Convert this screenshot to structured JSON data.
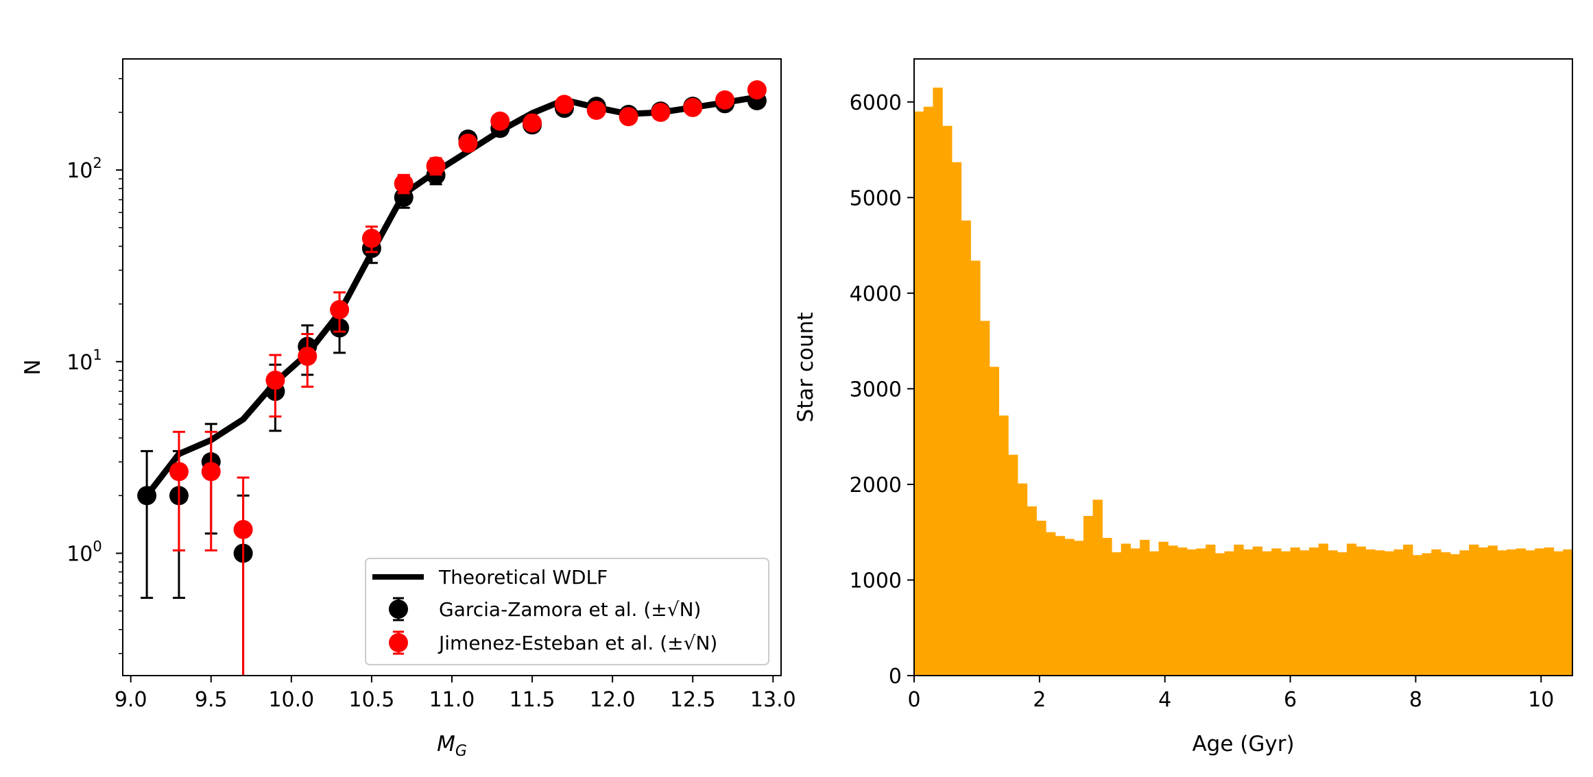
{
  "chart_data": [
    {
      "type": "scatter",
      "panel": "left",
      "xlabel": "M",
      "xlabel_subscript": "G",
      "ylabel": "N",
      "yscale": "log",
      "xlim": [
        8.95,
        13.05
      ],
      "ylim": [
        0.23,
        380
      ],
      "xticks": [
        {
          "value": 9.0,
          "label": "9.0"
        },
        {
          "value": 9.5,
          "label": "9.5"
        },
        {
          "value": 10.0,
          "label": "10.0"
        },
        {
          "value": 10.5,
          "label": "10.5"
        },
        {
          "value": 11.0,
          "label": "11.0"
        },
        {
          "value": 11.5,
          "label": "11.5"
        },
        {
          "value": 12.0,
          "label": "12.0"
        },
        {
          "value": 12.5,
          "label": "12.5"
        },
        {
          "value": 13.0,
          "label": "13.0"
        }
      ],
      "yticks": [
        {
          "value": 1,
          "base": "10",
          "exp": "0"
        },
        {
          "value": 10,
          "base": "10",
          "exp": "1"
        },
        {
          "value": 100,
          "base": "10",
          "exp": "2"
        }
      ],
      "theory": {
        "name": "Theoretical WDLF",
        "color": "#000000",
        "x": [
          9.1,
          9.3,
          9.5,
          9.7,
          9.9,
          10.1,
          10.3,
          10.5,
          10.7,
          10.9,
          11.1,
          11.3,
          11.5,
          11.7,
          11.9,
          12.1,
          12.3,
          12.5,
          12.7,
          12.9
        ],
        "y": [
          2.0,
          3.3,
          3.9,
          5.0,
          7.8,
          11.0,
          18.0,
          37.0,
          75.0,
          98.0,
          125.0,
          160.0,
          198.0,
          232.0,
          212.0,
          196.0,
          200.0,
          212.0,
          225.0,
          240.0
        ]
      },
      "series": [
        {
          "name": "Garcia-Zamora et al. (±√N)",
          "color": "#000000",
          "x": [
            9.1,
            9.3,
            9.5,
            9.7,
            9.9,
            10.1,
            10.3,
            10.5,
            10.7,
            10.9,
            11.1,
            11.3,
            11.5,
            11.7,
            11.9,
            12.1,
            12.3,
            12.5,
            12.7,
            12.9
          ],
          "y": [
            2,
            2,
            3,
            1,
            7,
            12,
            15,
            39,
            72,
            94,
            145,
            165,
            172,
            210,
            215,
            195,
            203,
            215,
            222,
            230
          ]
        },
        {
          "name": "Jimenez-Esteban et al. (±√N)",
          "color": "#ff0000",
          "x": [
            9.3,
            9.5,
            9.7,
            9.9,
            10.1,
            10.3,
            10.5,
            10.7,
            10.9,
            11.1,
            11.3,
            11.5,
            11.7,
            11.9,
            12.1,
            12.3,
            12.5,
            12.7,
            12.9
          ],
          "y": [
            2.67,
            2.67,
            1.33,
            8.0,
            10.67,
            18.67,
            44.0,
            85.0,
            105.0,
            138.0,
            180.0,
            176.0,
            220.0,
            205.0,
            190.0,
            200.0,
            212.0,
            232.0,
            262.0
          ]
        }
      ],
      "legend_position": "lower right"
    },
    {
      "type": "bar",
      "panel": "right",
      "histogram": true,
      "xlabel": "Age (Gyr)",
      "ylabel": "Star count",
      "color": "#ffa500",
      "xlim": [
        0,
        10.5
      ],
      "ylim": [
        0,
        6450
      ],
      "bin_width": 0.15,
      "xticks": [
        {
          "value": 0,
          "label": "0"
        },
        {
          "value": 2,
          "label": "2"
        },
        {
          "value": 4,
          "label": "4"
        },
        {
          "value": 6,
          "label": "6"
        },
        {
          "value": 8,
          "label": "8"
        },
        {
          "value": 10,
          "label": "10"
        }
      ],
      "yticks": [
        {
          "value": 0,
          "label": "0"
        },
        {
          "value": 1000,
          "label": "1000"
        },
        {
          "value": 2000,
          "label": "2000"
        },
        {
          "value": 3000,
          "label": "3000"
        },
        {
          "value": 4000,
          "label": "4000"
        },
        {
          "value": 5000,
          "label": "5000"
        },
        {
          "value": 6000,
          "label": "6000"
        }
      ],
      "values": [
        5900,
        5950,
        6150,
        5750,
        5370,
        4760,
        4340,
        3710,
        3230,
        2720,
        2310,
        2010,
        1770,
        1620,
        1500,
        1460,
        1430,
        1410,
        1670,
        1840,
        1440,
        1290,
        1380,
        1330,
        1420,
        1300,
        1400,
        1360,
        1340,
        1320,
        1330,
        1370,
        1280,
        1300,
        1370,
        1320,
        1350,
        1300,
        1330,
        1300,
        1340,
        1310,
        1340,
        1380,
        1310,
        1290,
        1380,
        1350,
        1320,
        1310,
        1300,
        1320,
        1370,
        1260,
        1280,
        1320,
        1290,
        1270,
        1310,
        1370,
        1340,
        1360,
        1310,
        1320,
        1330,
        1310,
        1330,
        1340,
        1300,
        1320
      ]
    }
  ]
}
